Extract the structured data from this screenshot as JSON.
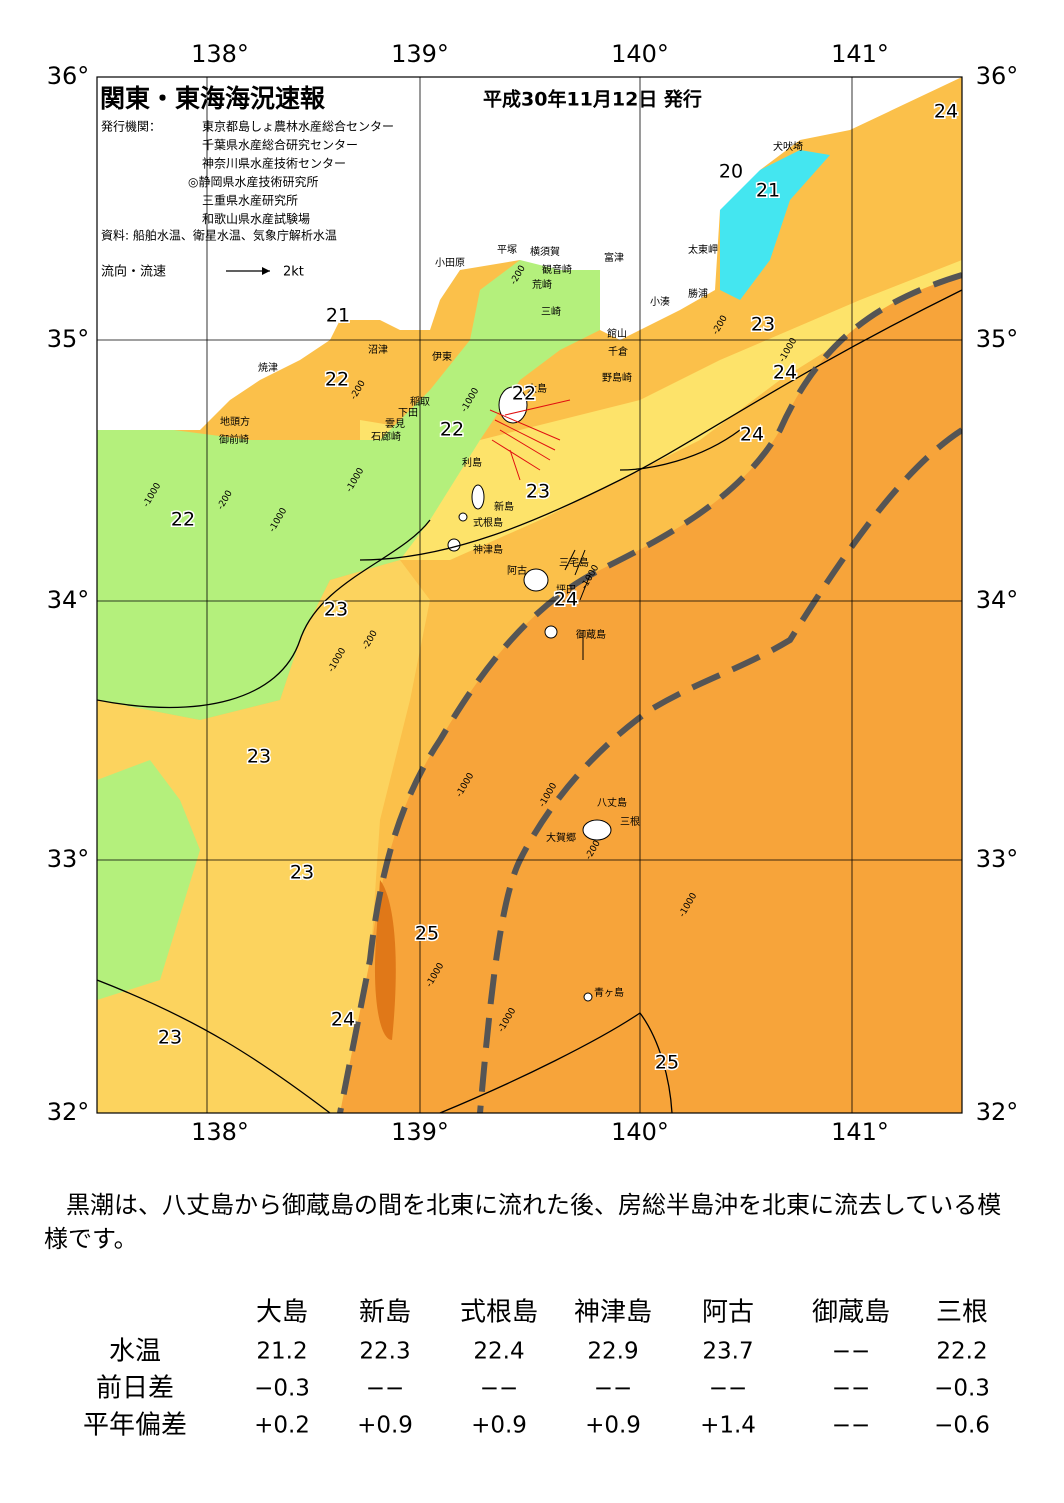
{
  "map": {
    "title": "関東・東海海況速報",
    "date": "平成30年11月12日 発行",
    "issuer_label": "発行機関：",
    "issuers": [
      "東京都島しょ農林水産総合センター",
      "千葉県水産総合研究センター",
      "神奈川県水産技術センター",
      "◎静岡県水産技術研究所",
      "三重県水産研究所",
      "和歌山県水産試験場"
    ],
    "source": "資料: 船舶水温、衛星水温、気象庁解析水温",
    "legend": {
      "label": "流向・流速",
      "scale": "2kt"
    },
    "lon_labels": [
      "138°",
      "139°",
      "140°",
      "141°"
    ],
    "lat_labels": [
      "36°",
      "35°",
      "34°",
      "33°",
      "32°"
    ],
    "places": [
      "犬吠埼",
      "太東岬",
      "勝浦",
      "小湊",
      "富津",
      "観音崎",
      "横須賀",
      "平塚",
      "小田原",
      "荒崎",
      "三崎",
      "館山",
      "千倉",
      "野島崎",
      "沼津",
      "伊東",
      "焼津",
      "稲取",
      "下田",
      "雲見",
      "石廊崎",
      "地頭方",
      "御前崎",
      "大島",
      "利島",
      "新島",
      "式根島",
      "神津島",
      "三宅島",
      "阿古",
      "坪田",
      "御蔵島",
      "八丈島",
      "三根",
      "大賀郷",
      "青ヶ島"
    ],
    "temperature_labels": [
      "24",
      "20",
      "21",
      "23",
      "24",
      "24",
      "21",
      "22",
      "22",
      "22",
      "23",
      "22",
      "23",
      "24",
      "23",
      "23",
      "25",
      "24",
      "23",
      "25"
    ],
    "depth_labels": [
      "-1000",
      "-200",
      "-1000",
      "-200",
      "-1000",
      "-200",
      "-1000",
      "-200",
      "-1000",
      "-1000",
      "-1000",
      "-200",
      "-1000",
      "-1000",
      "-1000",
      "-200",
      "-1000",
      "-1000"
    ]
  },
  "summary": "黒潮は、八丈島から御蔵島の間を北東に流れた後、房総半島沖を北東に流去している模様です。",
  "table": {
    "columns": [
      "大島",
      "新島",
      "式根島",
      "神津島",
      "阿古",
      "御蔵島",
      "三根"
    ],
    "rows": [
      {
        "label": "水温",
        "cells": [
          "21.2",
          "22.3",
          "22.4",
          "22.9",
          "23.7",
          "−−",
          "22.2"
        ]
      },
      {
        "label": "前日差",
        "cells": [
          "−0.3",
          "−−",
          "−−",
          "−−",
          "−−",
          "−−",
          "−0.3"
        ]
      },
      {
        "label": "平年偏差",
        "cells": [
          "+0.2",
          "+0.9",
          "+0.9",
          "+0.9",
          "+1.4",
          "−−",
          "−0.6"
        ]
      }
    ]
  }
}
